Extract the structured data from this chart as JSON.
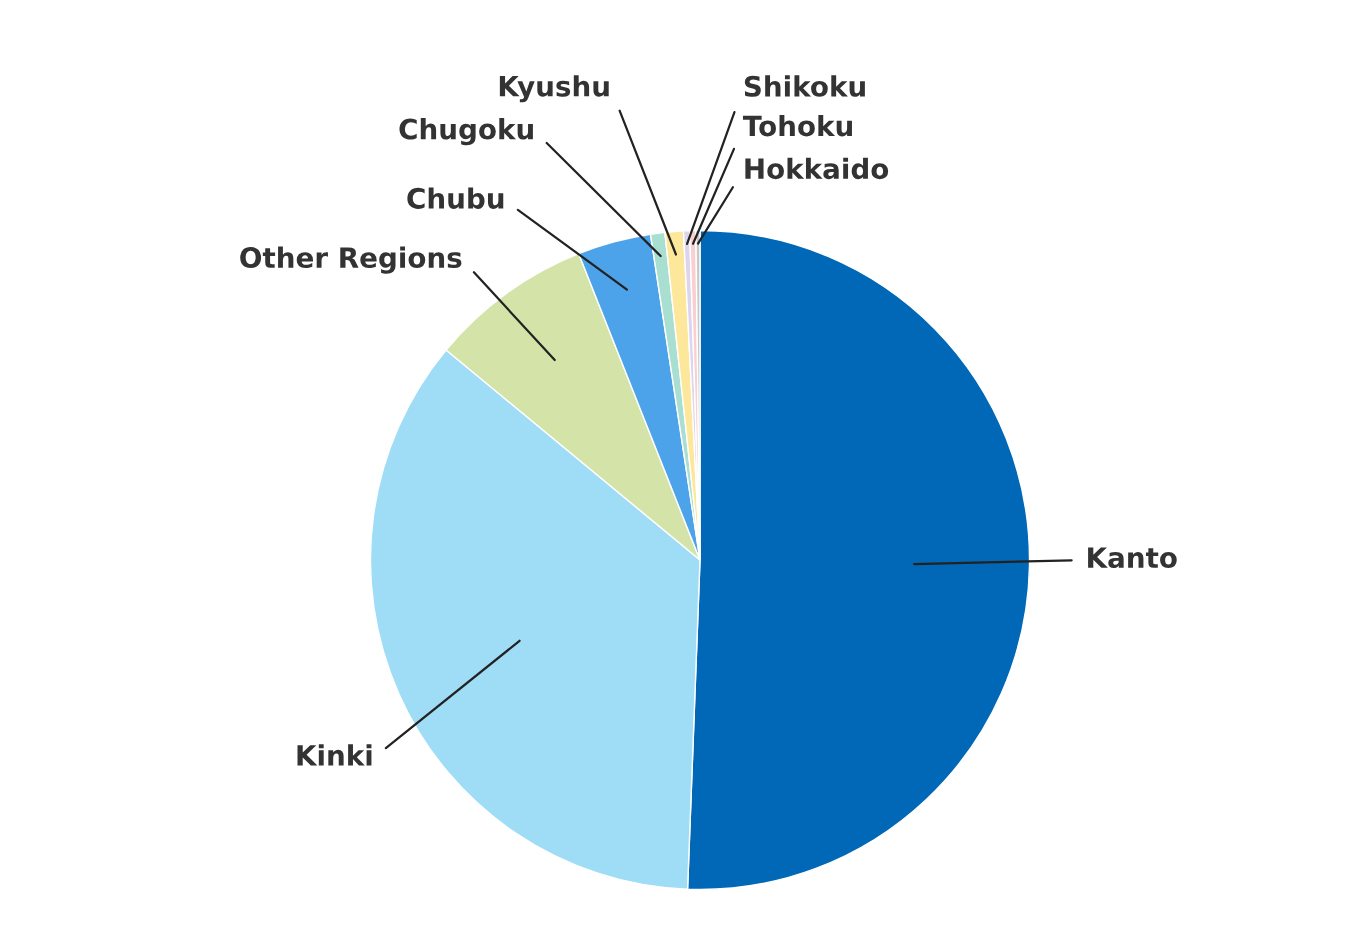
{
  "chart_data": {
    "type": "pie",
    "categories": [
      "Kanto",
      "Kinki",
      "Other Regions",
      "Chubu",
      "Chugoku",
      "Kyushu",
      "Shikoku",
      "Tohoku",
      "Hokkaido"
    ],
    "values": [
      50.6,
      35.4,
      8.0,
      3.6,
      0.7,
      0.9,
      0.3,
      0.3,
      0.2
    ],
    "colors": [
      "#0068b7",
      "#9fdcf5",
      "#d4e4a8",
      "#4da3ea",
      "#a8dfd0",
      "#fde79a",
      "#ddd5ee",
      "#f9d0d0",
      "#c8c8c8"
    ],
    "legend": false
  }
}
